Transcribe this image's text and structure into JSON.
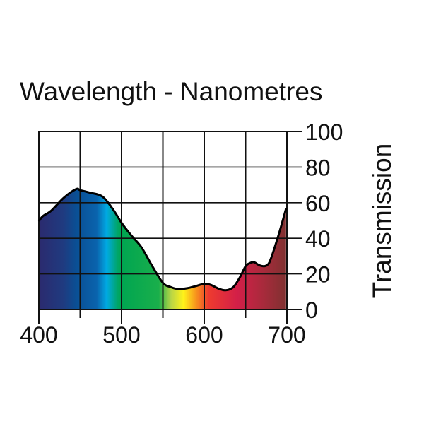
{
  "chart_data": {
    "type": "area",
    "title": "Wavelength - Nanometres",
    "xlabel": "",
    "ylabel": "Transmission",
    "xlim": [
      400,
      700
    ],
    "ylim": [
      0,
      100
    ],
    "x_ticks": [
      400,
      500,
      600,
      700
    ],
    "x_tick_labels": [
      "400",
      "500",
      "600",
      "700"
    ],
    "x_grid": [
      400,
      450,
      500,
      550,
      600,
      650,
      700
    ],
    "y_ticks": [
      0,
      20,
      40,
      60,
      80,
      100
    ],
    "y_tick_labels": [
      "0",
      "20",
      "40",
      "60",
      "80",
      "100"
    ],
    "y_axis_position": "right",
    "grid": true,
    "fill": "visible spectrum gradient",
    "series": [
      {
        "x": [
          400,
          405,
          415,
          430,
          445,
          450,
          462,
          477,
          490,
          501,
          512,
          524,
          537,
          550,
          560,
          569,
          580,
          590,
          600,
          608,
          617,
          626,
          635,
          643,
          650,
          655,
          660,
          666,
          672,
          676,
          680,
          690,
          699
        ],
        "y": [
          49.6,
          52.5,
          55.5,
          62.7,
          67.6,
          67,
          65.6,
          63.4,
          56,
          48,
          41.5,
          35,
          24.5,
          15,
          12.5,
          11.5,
          12,
          13.2,
          14.4,
          13.8,
          11.8,
          10.8,
          12.5,
          18,
          24.3,
          26,
          26.6,
          25,
          24.3,
          25,
          27.8,
          42,
          56.7
        ]
      }
    ],
    "spectrum_colors": [
      {
        "nm": 400,
        "color": "#2b2a6e"
      },
      {
        "nm": 430,
        "color": "#1f3b80"
      },
      {
        "nm": 445,
        "color": "#0a4f94"
      },
      {
        "nm": 470,
        "color": "#0a63ad"
      },
      {
        "nm": 482,
        "color": "#00aae3"
      },
      {
        "nm": 495,
        "color": "#00a56a"
      },
      {
        "nm": 500,
        "color": "#00a551"
      },
      {
        "nm": 545,
        "color": "#1aaf4b"
      },
      {
        "nm": 560,
        "color": "#b9d546"
      },
      {
        "nm": 575,
        "color": "#fff21a"
      },
      {
        "nm": 590,
        "color": "#f7941d"
      },
      {
        "nm": 605,
        "color": "#ee3b2f"
      },
      {
        "nm": 640,
        "color": "#d31f48"
      },
      {
        "nm": 670,
        "color": "#aa2a3c"
      },
      {
        "nm": 700,
        "color": "#7e3130"
      }
    ]
  }
}
